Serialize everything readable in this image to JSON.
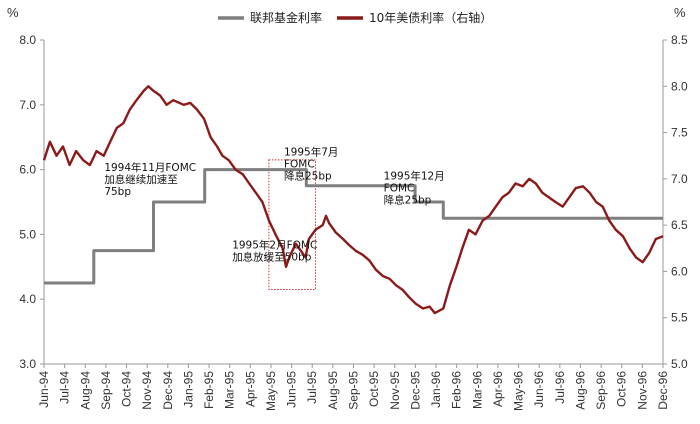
{
  "chart_data": {
    "type": "line",
    "title": "",
    "y_left_unit": "%",
    "y_right_unit": "%",
    "y_left": {
      "min": 3.0,
      "max": 8.0,
      "ticks": [
        "3.0",
        "4.0",
        "5.0",
        "6.0",
        "7.0",
        "8.0"
      ]
    },
    "y_right": {
      "min": 5.0,
      "max": 8.5,
      "ticks": [
        "5.0",
        "5.5",
        "6.0",
        "6.5",
        "7.0",
        "7.5",
        "8.0",
        "8.5"
      ]
    },
    "x_range": [
      "1994-06-01",
      "1996-12-31"
    ],
    "x_ticks": [
      "Jun-94",
      "Jul-94",
      "Aug-94",
      "Sep-94",
      "Oct-94",
      "Nov-94",
      "Dec-94",
      "Jan-95",
      "Feb-95",
      "Mar-95",
      "Apr-95",
      "May-95",
      "Jun-95",
      "Jul-95",
      "Aug-95",
      "Sep-95",
      "Oct-95",
      "Nov-95",
      "Dec-95",
      "Jan-96",
      "Feb-96",
      "Mar-96",
      "Apr-96",
      "May-96",
      "Jun-96",
      "Jul-96",
      "Aug-96",
      "Sep-96",
      "Oct-96",
      "Nov-96",
      "Dec-96"
    ],
    "grid": false,
    "legend_position": "top",
    "series": [
      {
        "name": "联邦基金利率",
        "axis": "left",
        "color": "#7f7f7f",
        "step": true,
        "points": [
          [
            "1994-06-01",
            4.25
          ],
          [
            "1994-08-16",
            4.75
          ],
          [
            "1994-11-15",
            5.5
          ],
          [
            "1995-02-01",
            6.0
          ],
          [
            "1995-07-06",
            5.75
          ],
          [
            "1995-12-19",
            5.5
          ],
          [
            "1996-01-31",
            5.25
          ],
          [
            "1996-12-31",
            5.25
          ]
        ]
      },
      {
        "name": "10年美债利率（右轴）",
        "axis": "right",
        "color": "#8b1a1a",
        "points": [
          [
            "1994-06-01",
            7.2
          ],
          [
            "1994-06-10",
            7.4
          ],
          [
            "1994-06-20",
            7.25
          ],
          [
            "1994-06-30",
            7.35
          ],
          [
            "1994-07-10",
            7.15
          ],
          [
            "1994-07-20",
            7.3
          ],
          [
            "1994-07-31",
            7.2
          ],
          [
            "1994-08-10",
            7.15
          ],
          [
            "1994-08-20",
            7.3
          ],
          [
            "1994-08-31",
            7.25
          ],
          [
            "1994-09-10",
            7.4
          ],
          [
            "1994-09-20",
            7.55
          ],
          [
            "1994-09-30",
            7.6
          ],
          [
            "1994-10-10",
            7.75
          ],
          [
            "1994-10-20",
            7.85
          ],
          [
            "1994-10-31",
            7.95
          ],
          [
            "1994-11-07",
            8.0
          ],
          [
            "1994-11-15",
            7.95
          ],
          [
            "1994-11-25",
            7.9
          ],
          [
            "1994-12-05",
            7.8
          ],
          [
            "1994-12-15",
            7.85
          ],
          [
            "1994-12-31",
            7.8
          ],
          [
            "1995-01-10",
            7.82
          ],
          [
            "1995-01-20",
            7.75
          ],
          [
            "1995-01-31",
            7.65
          ],
          [
            "1995-02-10",
            7.45
          ],
          [
            "1995-02-20",
            7.35
          ],
          [
            "1995-02-28",
            7.25
          ],
          [
            "1995-03-10",
            7.2
          ],
          [
            "1995-03-20",
            7.1
          ],
          [
            "1995-03-31",
            7.05
          ],
          [
            "1995-04-10",
            6.95
          ],
          [
            "1995-04-20",
            6.85
          ],
          [
            "1995-04-30",
            6.75
          ],
          [
            "1995-05-10",
            6.55
          ],
          [
            "1995-05-20",
            6.4
          ],
          [
            "1995-05-31",
            6.25
          ],
          [
            "1995-06-05",
            6.05
          ],
          [
            "1995-06-10",
            6.15
          ],
          [
            "1995-06-20",
            6.3
          ],
          [
            "1995-06-30",
            6.2
          ],
          [
            "1995-07-05",
            6.15
          ],
          [
            "1995-07-10",
            6.35
          ],
          [
            "1995-07-20",
            6.45
          ],
          [
            "1995-07-31",
            6.5
          ],
          [
            "1995-08-05",
            6.6
          ],
          [
            "1995-08-10",
            6.52
          ],
          [
            "1995-08-20",
            6.42
          ],
          [
            "1995-08-31",
            6.35
          ],
          [
            "1995-09-10",
            6.28
          ],
          [
            "1995-09-20",
            6.22
          ],
          [
            "1995-09-30",
            6.18
          ],
          [
            "1995-10-10",
            6.12
          ],
          [
            "1995-10-20",
            6.02
          ],
          [
            "1995-10-31",
            5.95
          ],
          [
            "1995-11-10",
            5.92
          ],
          [
            "1995-11-20",
            5.85
          ],
          [
            "1995-11-30",
            5.8
          ],
          [
            "1995-12-10",
            5.72
          ],
          [
            "1995-12-20",
            5.65
          ],
          [
            "1995-12-31",
            5.6
          ],
          [
            "1996-01-10",
            5.62
          ],
          [
            "1996-01-18",
            5.55
          ],
          [
            "1996-01-31",
            5.6
          ],
          [
            "1996-02-10",
            5.85
          ],
          [
            "1996-02-20",
            6.05
          ],
          [
            "1996-02-29",
            6.25
          ],
          [
            "1996-03-10",
            6.45
          ],
          [
            "1996-03-20",
            6.4
          ],
          [
            "1996-03-31",
            6.55
          ],
          [
            "1996-04-10",
            6.6
          ],
          [
            "1996-04-20",
            6.7
          ],
          [
            "1996-04-30",
            6.8
          ],
          [
            "1996-05-10",
            6.85
          ],
          [
            "1996-05-20",
            6.95
          ],
          [
            "1996-05-31",
            6.92
          ],
          [
            "1996-06-10",
            7.0
          ],
          [
            "1996-06-20",
            6.95
          ],
          [
            "1996-06-30",
            6.85
          ],
          [
            "1996-07-10",
            6.8
          ],
          [
            "1996-07-20",
            6.75
          ],
          [
            "1996-07-31",
            6.7
          ],
          [
            "1996-08-10",
            6.8
          ],
          [
            "1996-08-20",
            6.9
          ],
          [
            "1996-08-31",
            6.92
          ],
          [
            "1996-09-10",
            6.85
          ],
          [
            "1996-09-20",
            6.75
          ],
          [
            "1996-09-30",
            6.7
          ],
          [
            "1996-10-10",
            6.55
          ],
          [
            "1996-10-20",
            6.45
          ],
          [
            "1996-10-31",
            6.38
          ],
          [
            "1996-11-10",
            6.25
          ],
          [
            "1996-11-20",
            6.15
          ],
          [
            "1996-11-30",
            6.1
          ],
          [
            "1996-12-10",
            6.2
          ],
          [
            "1996-12-20",
            6.35
          ],
          [
            "1996-12-31",
            6.38
          ]
        ]
      }
    ],
    "annotations": [
      {
        "lines": [
          "1994年11月FOMC",
          "加息继续加速至",
          "75bp"
        ],
        "anchor": [
          "1994-09-01",
          5.98,
          "left"
        ]
      },
      {
        "lines": [
          "1995年2月FOMC",
          "加息放缓至50bp"
        ],
        "anchor": [
          "1995-03-15",
          4.78,
          "left"
        ]
      },
      {
        "lines": [
          "1995年7月",
          "FOMC",
          "降息25bp"
        ],
        "anchor": [
          "1995-06-02",
          6.22,
          "left"
        ]
      },
      {
        "lines": [
          "1995年12月",
          "FOMC",
          "降息25bp"
        ],
        "anchor": [
          "1995-11-01",
          5.85,
          "left"
        ]
      }
    ],
    "highlight_box": {
      "x0": "1995-05-10",
      "x1": "1995-07-20",
      "y0": 4.15,
      "y1": 6.15,
      "axis": "left",
      "color": "#d32f2f",
      "style": "dotted"
    }
  }
}
